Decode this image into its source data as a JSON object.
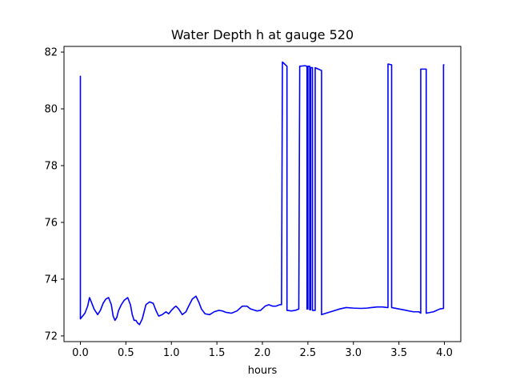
{
  "chart_data": {
    "type": "line",
    "title": "Water Depth h at gauge 520",
    "xlabel": "hours",
    "ylabel": "",
    "xlim": [
      -0.18,
      4.18
    ],
    "ylim": [
      71.8,
      82.2
    ],
    "xticks": [
      0.0,
      0.5,
      1.0,
      1.5,
      2.0,
      2.5,
      3.0,
      3.5,
      4.0
    ],
    "xtick_labels": [
      "0.0",
      "0.5",
      "1.0",
      "1.5",
      "2.0",
      "2.5",
      "3.0",
      "3.5",
      "4.0"
    ],
    "yticks": [
      72,
      74,
      76,
      78,
      80,
      82
    ],
    "ytick_labels": [
      "72",
      "74",
      "76",
      "78",
      "80",
      "82"
    ],
    "grid": false,
    "line_color": "#0000ff",
    "series": [
      {
        "x": [
          0.0,
          0.0,
          0.0,
          0.05,
          0.08,
          0.1,
          0.12,
          0.15,
          0.19,
          0.22,
          0.25,
          0.28,
          0.31,
          0.34,
          0.36,
          0.38,
          0.4,
          0.42,
          0.45,
          0.48,
          0.52,
          0.55,
          0.57,
          0.59,
          0.61,
          0.63,
          0.65,
          0.68,
          0.7,
          0.72,
          0.76,
          0.8,
          0.83,
          0.86,
          0.9,
          0.94,
          0.97,
          1.0,
          1.03,
          1.05,
          1.08,
          1.12,
          1.16,
          1.19,
          1.23,
          1.27,
          1.3,
          1.33,
          1.37,
          1.42,
          1.47,
          1.52,
          1.56,
          1.6,
          1.66,
          1.72,
          1.78,
          1.83,
          1.87,
          1.9,
          1.94,
          1.98,
          2.03,
          2.07,
          2.11,
          2.15,
          2.19,
          2.21,
          2.22,
          2.22,
          2.27,
          2.27,
          2.32,
          2.36,
          2.4,
          2.41,
          2.41,
          2.47,
          2.49,
          2.49,
          2.5,
          2.5,
          2.52,
          2.52,
          2.53,
          2.53,
          2.55,
          2.55,
          2.58,
          2.58,
          2.65,
          2.65,
          2.75,
          2.85,
          2.92,
          3.0,
          3.08,
          3.15,
          3.2,
          3.26,
          3.32,
          3.37,
          3.38,
          3.38,
          3.42,
          3.42,
          3.5,
          3.58,
          3.66,
          3.72,
          3.74,
          3.74,
          3.8,
          3.8,
          3.88,
          3.95,
          3.99,
          3.99,
          4.0
        ],
        "y": [
          72.6,
          81.15,
          72.6,
          72.8,
          73.05,
          73.35,
          73.2,
          72.95,
          72.75,
          72.9,
          73.15,
          73.3,
          73.35,
          73.1,
          72.7,
          72.55,
          72.65,
          72.9,
          73.1,
          73.25,
          73.35,
          73.1,
          72.75,
          72.55,
          72.55,
          72.45,
          72.4,
          72.6,
          72.85,
          73.1,
          73.2,
          73.15,
          72.9,
          72.7,
          72.75,
          72.85,
          72.78,
          72.9,
          73.0,
          73.05,
          72.95,
          72.75,
          72.85,
          73.05,
          73.3,
          73.4,
          73.2,
          72.95,
          72.78,
          72.75,
          72.85,
          72.9,
          72.88,
          72.83,
          72.8,
          72.88,
          73.05,
          73.05,
          72.95,
          72.92,
          72.88,
          72.9,
          73.05,
          73.1,
          73.05,
          73.05,
          73.1,
          73.1,
          81.65,
          81.65,
          81.5,
          72.9,
          72.88,
          72.9,
          72.95,
          81.5,
          81.5,
          81.52,
          81.5,
          72.95,
          72.95,
          81.5,
          81.5,
          72.92,
          72.92,
          81.45,
          81.45,
          72.9,
          72.9,
          81.45,
          81.35,
          72.75,
          72.85,
          72.95,
          73.0,
          72.98,
          72.97,
          72.98,
          73.0,
          73.02,
          73.02,
          73.0,
          73.0,
          81.58,
          81.55,
          73.0,
          72.95,
          72.9,
          72.85,
          72.85,
          72.8,
          81.4,
          81.4,
          72.8,
          72.85,
          72.95,
          72.97,
          81.55,
          81.55
        ]
      }
    ]
  }
}
